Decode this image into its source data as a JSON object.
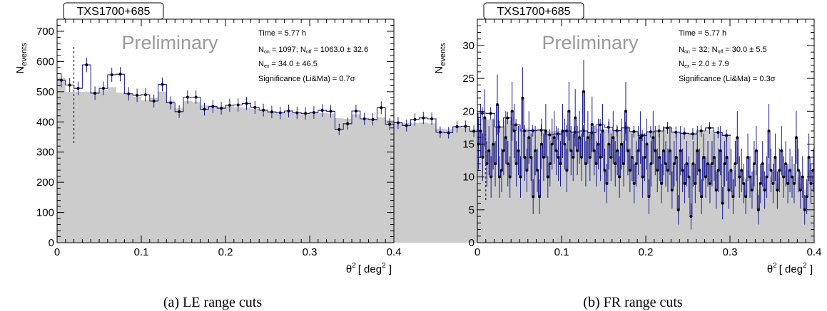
{
  "chart_data": [
    {
      "type": "histogram",
      "panel_id": "a",
      "title": "TXS1700+685",
      "watermark": "Preliminary",
      "xlabel_base": "θ",
      "xlabel_sup": "2",
      "xlabel_unit": "[ deg",
      "xlabel_unit_sup": "2",
      "xlabel_tail": " ]",
      "ylabel_base": "N",
      "ylabel_sub": "events",
      "xlim": [
        0,
        0.4
      ],
      "ylim": [
        0,
        740
      ],
      "xticks": [
        0,
        0.1,
        0.2,
        0.3,
        0.4
      ],
      "xtick_labels": [
        "0",
        "0.1",
        "0.2",
        "0.3",
        "0.4"
      ],
      "yticks": [
        0,
        100,
        200,
        300,
        400,
        500,
        600,
        700
      ],
      "ytick_labels": [
        "0",
        "100",
        "200",
        "300",
        "400",
        "500",
        "600",
        "700"
      ],
      "bin_width": 0.01,
      "cut_x": 0.02,
      "cut_y_range": [
        330,
        650
      ],
      "on_color": "#1a1a8c",
      "off_fill": "#cccccc",
      "on_counts": [
        538,
        522,
        511,
        589,
        495,
        511,
        556,
        558,
        493,
        488,
        490,
        469,
        524,
        463,
        434,
        482,
        482,
        442,
        451,
        445,
        455,
        456,
        461,
        448,
        439,
        433,
        430,
        436,
        430,
        428,
        431,
        438,
        435,
        375,
        394,
        436,
        410,
        408,
        447,
        392,
        397,
        388,
        408,
        413,
        410,
        366,
        364,
        384,
        385,
        369,
        429,
        428,
        383,
        413,
        390,
        370,
        371,
        373,
        357,
        360,
        370,
        366,
        370,
        364,
        390,
        382,
        371,
        380,
        368,
        355,
        367,
        370,
        380,
        366,
        362,
        360,
        370,
        380,
        365,
        355
      ],
      "off_counts": [
        545,
        500,
        500,
        500,
        500,
        505,
        515,
        497,
        490,
        483,
        472,
        480,
        500,
        470,
        445,
        470,
        466,
        455,
        452,
        450,
        452,
        449,
        447,
        443,
        439,
        433,
        430,
        432,
        430,
        426,
        431,
        430,
        428,
        412,
        410,
        425,
        408,
        410,
        415,
        406,
        400,
        396,
        396,
        398,
        395,
        378,
        376,
        385,
        380,
        375,
        410,
        408,
        385,
        405,
        388,
        378,
        375,
        376,
        369,
        370,
        372,
        370,
        370,
        367,
        378,
        375,
        370,
        375,
        369,
        362,
        368,
        369,
        374,
        367,
        365,
        364,
        368,
        372,
        366,
        360
      ],
      "time_label": "Time = 5.77 h",
      "non_prefix": "N",
      "non_sub": "on",
      "non_value": " = 1097; N",
      "noff_sub": "off",
      "noff_value": " = 1063.0 ± 32.6",
      "nex_prefix": "N",
      "nex_sub": "ex",
      "nex_value": " = 34.0 ± 46.5",
      "sig_label": "Significance (Li&Ma) =  0.7σ",
      "caption": "(a) LE range cuts"
    },
    {
      "type": "histogram",
      "panel_id": "b",
      "title": "TXS1700+685",
      "watermark": "Preliminary",
      "xlabel_base": "θ",
      "xlabel_sup": "2",
      "xlabel_unit": "[ deg",
      "xlabel_unit_sup": "2",
      "xlabel_tail": " ]",
      "ylabel_base": "N",
      "ylabel_sub": "events",
      "xlim": [
        0,
        0.4
      ],
      "ylim": [
        0,
        34
      ],
      "xticks": [
        0,
        0.1,
        0.2,
        0.3,
        0.4
      ],
      "xtick_labels": [
        "0",
        "0.1",
        "0.2",
        "0.3",
        "0.4"
      ],
      "yticks": [
        0,
        5,
        10,
        15,
        20,
        25,
        30
      ],
      "ytick_labels": [
        "0",
        "5",
        "10",
        "15",
        "20",
        "25",
        "30"
      ],
      "bin_width": 0.0025,
      "cut_x": 0.01,
      "cut_y_range": [
        6.5,
        17
      ],
      "on_color": "#1a1a8c",
      "off_fill": "#cccccc",
      "on_counts": [
        15,
        17,
        13,
        19,
        12,
        14,
        10,
        15,
        12,
        21,
        10,
        11,
        14,
        16,
        12,
        10,
        20,
        17,
        12,
        14,
        10,
        22,
        13,
        11,
        16,
        13,
        7,
        14,
        11,
        7,
        15,
        13,
        17,
        10,
        12,
        15,
        16,
        14,
        13,
        12,
        17,
        15,
        11,
        20,
        14,
        13,
        19,
        14,
        16,
        13,
        23,
        12,
        16,
        13,
        18,
        14,
        12,
        15,
        13,
        17,
        11,
        9,
        15,
        13,
        16,
        12,
        14,
        10,
        15,
        12,
        20,
        14,
        11,
        13,
        9,
        12,
        14,
        16,
        10,
        13,
        15,
        7,
        12,
        16,
        14,
        11,
        13,
        9,
        14,
        12,
        11,
        14,
        8,
        12,
        13,
        5,
        14,
        11,
        9,
        12,
        10,
        4,
        12,
        9,
        14,
        11,
        7,
        13,
        10,
        12,
        9,
        12,
        13,
        8,
        11,
        14,
        6,
        12,
        13,
        8,
        11,
        7,
        12,
        16,
        10,
        11,
        9,
        7,
        13,
        10,
        8,
        12,
        14,
        5,
        9,
        12,
        8,
        10,
        17,
        11,
        9,
        13,
        8,
        11,
        14,
        10,
        12,
        9,
        11,
        10,
        9,
        16,
        11,
        8,
        10,
        5,
        7,
        13,
        9,
        11
      ],
      "off_counts": [
        14,
        15,
        13,
        16,
        13,
        14,
        11,
        14,
        12,
        16,
        11,
        12,
        13,
        14,
        12,
        11,
        15,
        14,
        12,
        13,
        11,
        15,
        13,
        12,
        14,
        13,
        9,
        13,
        12,
        9,
        14,
        13,
        14,
        11,
        12,
        14,
        14,
        13,
        13,
        12,
        14,
        14,
        12,
        15,
        13,
        13,
        14,
        13,
        14,
        13,
        15,
        12,
        14,
        13,
        14,
        13,
        12,
        14,
        13,
        14,
        12,
        10,
        13,
        13,
        14,
        12,
        13,
        11,
        13,
        12,
        14,
        13,
        11,
        12,
        10,
        12,
        13,
        14,
        11,
        12,
        13,
        9,
        12,
        13,
        13,
        11,
        12,
        10,
        13,
        12,
        11,
        12,
        10,
        11,
        12,
        8,
        12,
        11,
        10,
        11,
        10,
        7,
        11,
        10,
        12,
        11,
        9,
        11,
        10,
        11,
        10,
        11,
        12,
        9,
        11,
        12,
        8,
        11,
        12,
        9,
        11,
        8,
        11,
        13,
        10,
        11,
        10,
        8,
        11,
        10,
        9,
        11,
        12,
        8,
        10,
        11,
        9,
        10,
        12,
        10,
        9,
        11,
        9,
        10,
        11,
        10,
        11,
        9,
        10,
        10,
        9,
        11,
        10,
        9,
        10,
        8,
        9,
        11,
        10,
        10
      ],
      "time_label": "Time = 5.77 h",
      "non_prefix": "N",
      "non_sub": "on",
      "non_value": " = 32; N",
      "noff_sub": "off",
      "noff_value": " = 30.0 ±  5.5",
      "nex_prefix": "N",
      "nex_sub": "ex",
      "nex_value": " = 2.0 ± 7.9",
      "sig_label": "Significance (Li&Ma) =  0.3σ",
      "caption": "(b) FR range cuts"
    }
  ]
}
